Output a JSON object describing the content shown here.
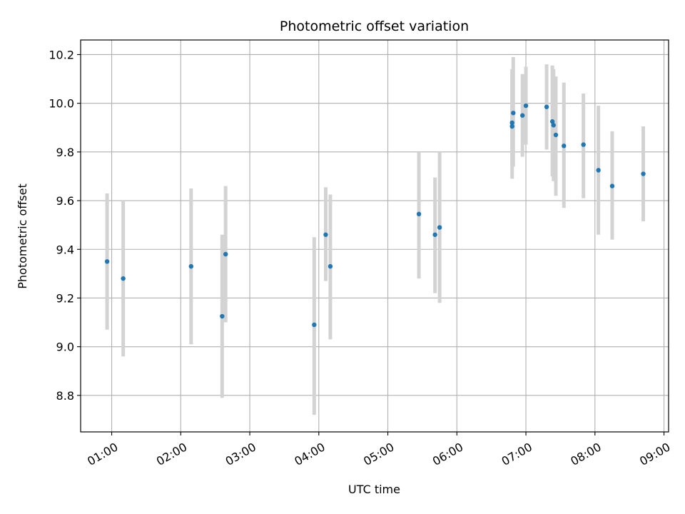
{
  "chart_data": {
    "type": "scatter",
    "title": "Photometric offset variation",
    "xlabel": "UTC time",
    "ylabel": "Photometric offset",
    "x_ticks": [
      "01:00",
      "02:00",
      "03:00",
      "04:00",
      "05:00",
      "06:00",
      "07:00",
      "08:00",
      "09:00"
    ],
    "x_tick_hours": [
      1,
      2,
      3,
      4,
      5,
      6,
      7,
      8,
      9
    ],
    "y_ticks": [
      "8.8",
      "9.0",
      "9.2",
      "9.4",
      "9.6",
      "9.8",
      "10.0",
      "10.2"
    ],
    "y_tick_values": [
      8.8,
      9.0,
      9.2,
      9.4,
      9.6,
      9.8,
      10.0,
      10.2
    ],
    "xlim": [
      "00:33",
      "09:04"
    ],
    "ylim": [
      8.65,
      10.26
    ],
    "grid": true,
    "point_color": "#1f77b4",
    "errorbar_color": "#d3d3d3",
    "points": [
      {
        "t": "00:56",
        "y": 9.35,
        "lo": 9.07,
        "hi": 9.63
      },
      {
        "t": "01:10",
        "y": 9.28,
        "lo": 8.96,
        "hi": 9.6
      },
      {
        "t": "02:09",
        "y": 9.33,
        "lo": 9.01,
        "hi": 9.65
      },
      {
        "t": "02:36",
        "y": 9.125,
        "lo": 8.79,
        "hi": 9.46
      },
      {
        "t": "02:39",
        "y": 9.38,
        "lo": 9.1,
        "hi": 9.66
      },
      {
        "t": "03:56",
        "y": 9.09,
        "lo": 8.72,
        "hi": 9.45
      },
      {
        "t": "04:06",
        "y": 9.46,
        "lo": 9.27,
        "hi": 9.655
      },
      {
        "t": "04:10",
        "y": 9.33,
        "lo": 9.03,
        "hi": 9.625
      },
      {
        "t": "05:27",
        "y": 9.545,
        "lo": 9.28,
        "hi": 9.8
      },
      {
        "t": "05:41",
        "y": 9.46,
        "lo": 9.22,
        "hi": 9.695
      },
      {
        "t": "05:45",
        "y": 9.49,
        "lo": 9.18,
        "hi": 9.8
      },
      {
        "t": "06:48",
        "y": 9.905,
        "lo": 9.69,
        "hi": 10.13
      },
      {
        "t": "06:48",
        "y": 9.92,
        "lo": 9.74,
        "hi": 10.14
      },
      {
        "t": "06:49",
        "y": 9.96,
        "lo": 9.74,
        "hi": 10.19
      },
      {
        "t": "06:57",
        "y": 9.95,
        "lo": 9.78,
        "hi": 10.12
      },
      {
        "t": "07:00",
        "y": 9.99,
        "lo": 9.83,
        "hi": 10.15
      },
      {
        "t": "07:18",
        "y": 9.985,
        "lo": 9.81,
        "hi": 10.16
      },
      {
        "t": "07:23",
        "y": 9.925,
        "lo": 9.7,
        "hi": 10.155
      },
      {
        "t": "07:24",
        "y": 9.91,
        "lo": 9.68,
        "hi": 10.14
      },
      {
        "t": "07:26",
        "y": 9.87,
        "lo": 9.62,
        "hi": 10.11
      },
      {
        "t": "07:33",
        "y": 9.825,
        "lo": 9.57,
        "hi": 10.085
      },
      {
        "t": "07:50",
        "y": 9.83,
        "lo": 9.61,
        "hi": 10.04
      },
      {
        "t": "08:03",
        "y": 9.725,
        "lo": 9.46,
        "hi": 9.99
      },
      {
        "t": "08:15",
        "y": 9.66,
        "lo": 9.44,
        "hi": 9.885
      },
      {
        "t": "08:42",
        "y": 9.71,
        "lo": 9.515,
        "hi": 9.905
      }
    ]
  }
}
